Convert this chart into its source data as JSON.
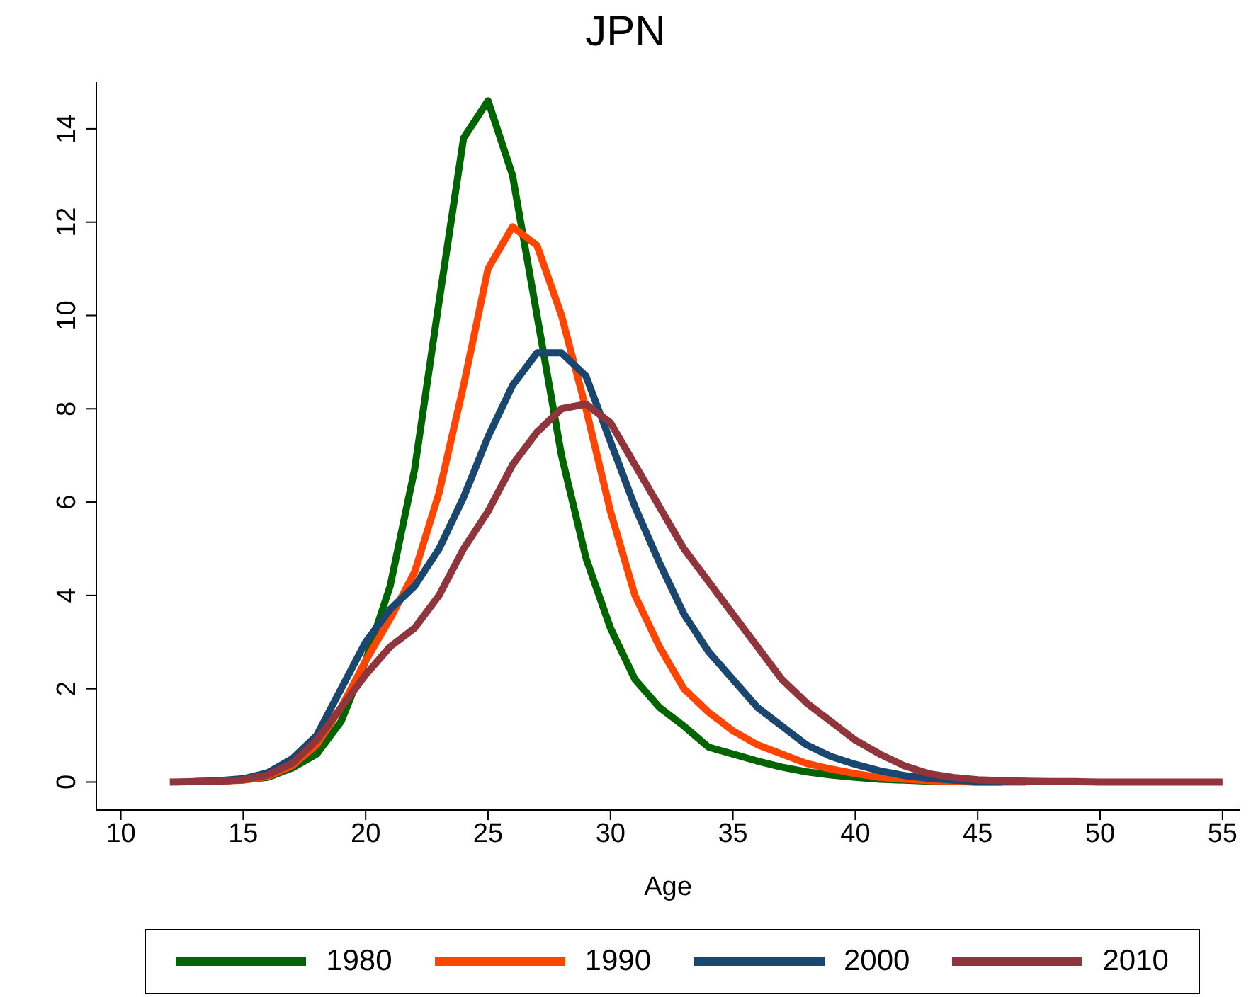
{
  "chart_data": {
    "type": "line",
    "title": "JPN",
    "xlabel": "Age",
    "x": [
      12,
      13,
      14,
      15,
      16,
      17,
      18,
      19,
      20,
      21,
      22,
      23,
      24,
      25,
      26,
      27,
      28,
      29,
      30,
      31,
      32,
      33,
      34,
      35,
      36,
      37,
      38,
      39,
      40,
      41,
      42,
      43,
      44,
      45,
      46,
      47,
      48,
      49,
      50,
      51,
      52,
      53,
      54,
      55
    ],
    "series": [
      {
        "name": "1980",
        "color": "#006400",
        "values": [
          null,
          null,
          0.02,
          0.05,
          0.1,
          0.3,
          0.6,
          1.3,
          2.6,
          4.2,
          6.7,
          10.3,
          13.8,
          14.6,
          13,
          10,
          7,
          4.8,
          3.3,
          2.2,
          1.6,
          1.2,
          0.75,
          0.6,
          0.45,
          0.32,
          0.22,
          0.15,
          0.1,
          0.06,
          0.04,
          0.02,
          0.01,
          0,
          0,
          null,
          null,
          null,
          null,
          null,
          null,
          null,
          null,
          null
        ]
      },
      {
        "name": "1990",
        "color": "#ff4500",
        "values": [
          null,
          null,
          0.02,
          0.04,
          0.12,
          0.35,
          0.8,
          1.6,
          2.6,
          3.5,
          4.5,
          6.2,
          8.5,
          11,
          11.9,
          11.5,
          10,
          8,
          5.8,
          4,
          2.9,
          2,
          1.5,
          1.1,
          0.8,
          0.6,
          0.4,
          0.28,
          0.18,
          0.1,
          0.06,
          0.03,
          0.02,
          0,
          0,
          0,
          null,
          null,
          null,
          null,
          null,
          null,
          null,
          null
        ]
      },
      {
        "name": "2000",
        "color": "#1a476f",
        "values": [
          null,
          0.01,
          0.03,
          0.07,
          0.2,
          0.5,
          1,
          2,
          3,
          3.7,
          4.2,
          5,
          6.1,
          7.4,
          8.5,
          9.2,
          9.2,
          8.7,
          7.3,
          5.9,
          4.7,
          3.6,
          2.8,
          2.2,
          1.6,
          1.2,
          0.8,
          0.55,
          0.38,
          0.24,
          0.14,
          0.08,
          0.04,
          0.02,
          0.01,
          0.01,
          null,
          null,
          null,
          null,
          null,
          null,
          null,
          null
        ]
      },
      {
        "name": "2010",
        "color": "#90353b",
        "values": [
          0,
          0.01,
          0.02,
          0.05,
          0.15,
          0.4,
          0.9,
          1.6,
          2.3,
          2.9,
          3.3,
          4,
          5,
          5.8,
          6.8,
          7.5,
          8,
          8.1,
          7.7,
          6.8,
          5.9,
          5,
          4.3,
          3.6,
          2.9,
          2.2,
          1.7,
          1.3,
          0.9,
          0.6,
          0.35,
          0.18,
          0.1,
          0.05,
          0.03,
          0.02,
          0.01,
          0.01,
          0,
          0,
          0,
          0,
          0,
          0
        ]
      }
    ],
    "xlim": [
      9,
      55.7
    ],
    "xticks": [
      10,
      15,
      20,
      25,
      30,
      35,
      40,
      45,
      50,
      55
    ],
    "ylim": [
      -0.6,
      15
    ],
    "yticks": [
      0,
      2,
      4,
      6,
      8,
      10,
      12,
      14
    ],
    "grid": false,
    "legend": "bottom",
    "marker": "none",
    "line_style": "solid"
  }
}
